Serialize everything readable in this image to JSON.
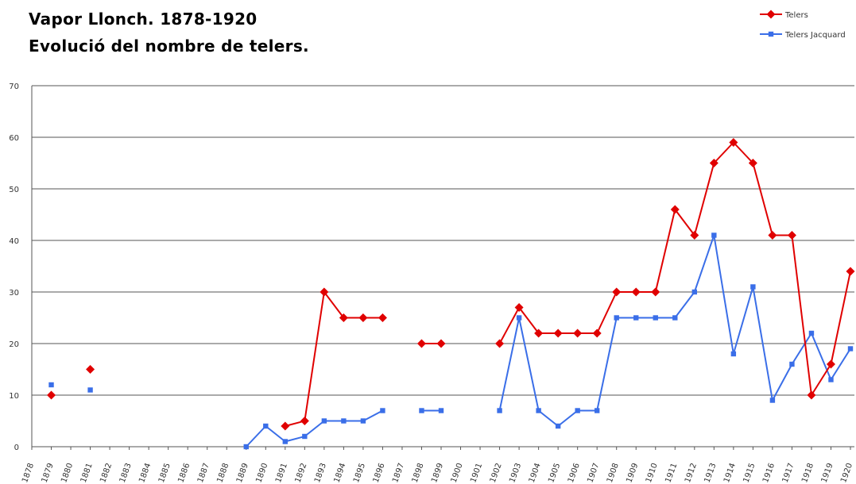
{
  "chart_data": {
    "type": "line",
    "title": "Vapor Llonch. 1878-1920",
    "subtitle": "Evolució del nombre de telers.",
    "xlabel": "",
    "ylabel": "",
    "ylim": [
      0,
      70
    ],
    "yticks": [
      0,
      10,
      20,
      30,
      40,
      50,
      60,
      70
    ],
    "grid": true,
    "legend_position": "top-right",
    "categories": [
      "1878",
      "1879",
      "1880",
      "1881",
      "1882",
      "1883",
      "1884",
      "1885",
      "1886",
      "1887",
      "1888",
      "1889",
      "1890",
      "1891",
      "1892",
      "1893",
      "1894",
      "1895",
      "1896",
      "1897",
      "1898",
      "1899",
      "1900",
      "1901",
      "1902",
      "1903",
      "1904",
      "1905",
      "1906",
      "1907",
      "1908",
      "1909",
      "1910",
      "1911",
      "1912",
      "1913",
      "1914",
      "1915",
      "1916",
      "1917",
      "1918",
      "1919",
      "1920"
    ],
    "series": [
      {
        "name": "Telers",
        "color": "#e00000",
        "marker": "diamond",
        "values": [
          null,
          10,
          null,
          15,
          null,
          null,
          null,
          null,
          null,
          null,
          null,
          null,
          null,
          4,
          5,
          30,
          25,
          25,
          25,
          null,
          20,
          20,
          null,
          null,
          20,
          27,
          22,
          22,
          22,
          22,
          30,
          30,
          30,
          46,
          41,
          55,
          59,
          55,
          41,
          41,
          10,
          16,
          34
        ]
      },
      {
        "name": "Telers Jacquard",
        "color": "#3a6ee8",
        "marker": "square",
        "values": [
          null,
          12,
          null,
          11,
          null,
          null,
          null,
          null,
          null,
          null,
          null,
          0,
          4,
          1,
          2,
          5,
          5,
          5,
          7,
          null,
          7,
          7,
          null,
          null,
          7,
          25,
          7,
          4,
          7,
          7,
          25,
          25,
          25,
          25,
          30,
          41,
          18,
          31,
          9,
          16,
          22,
          13,
          19
        ]
      }
    ]
  }
}
